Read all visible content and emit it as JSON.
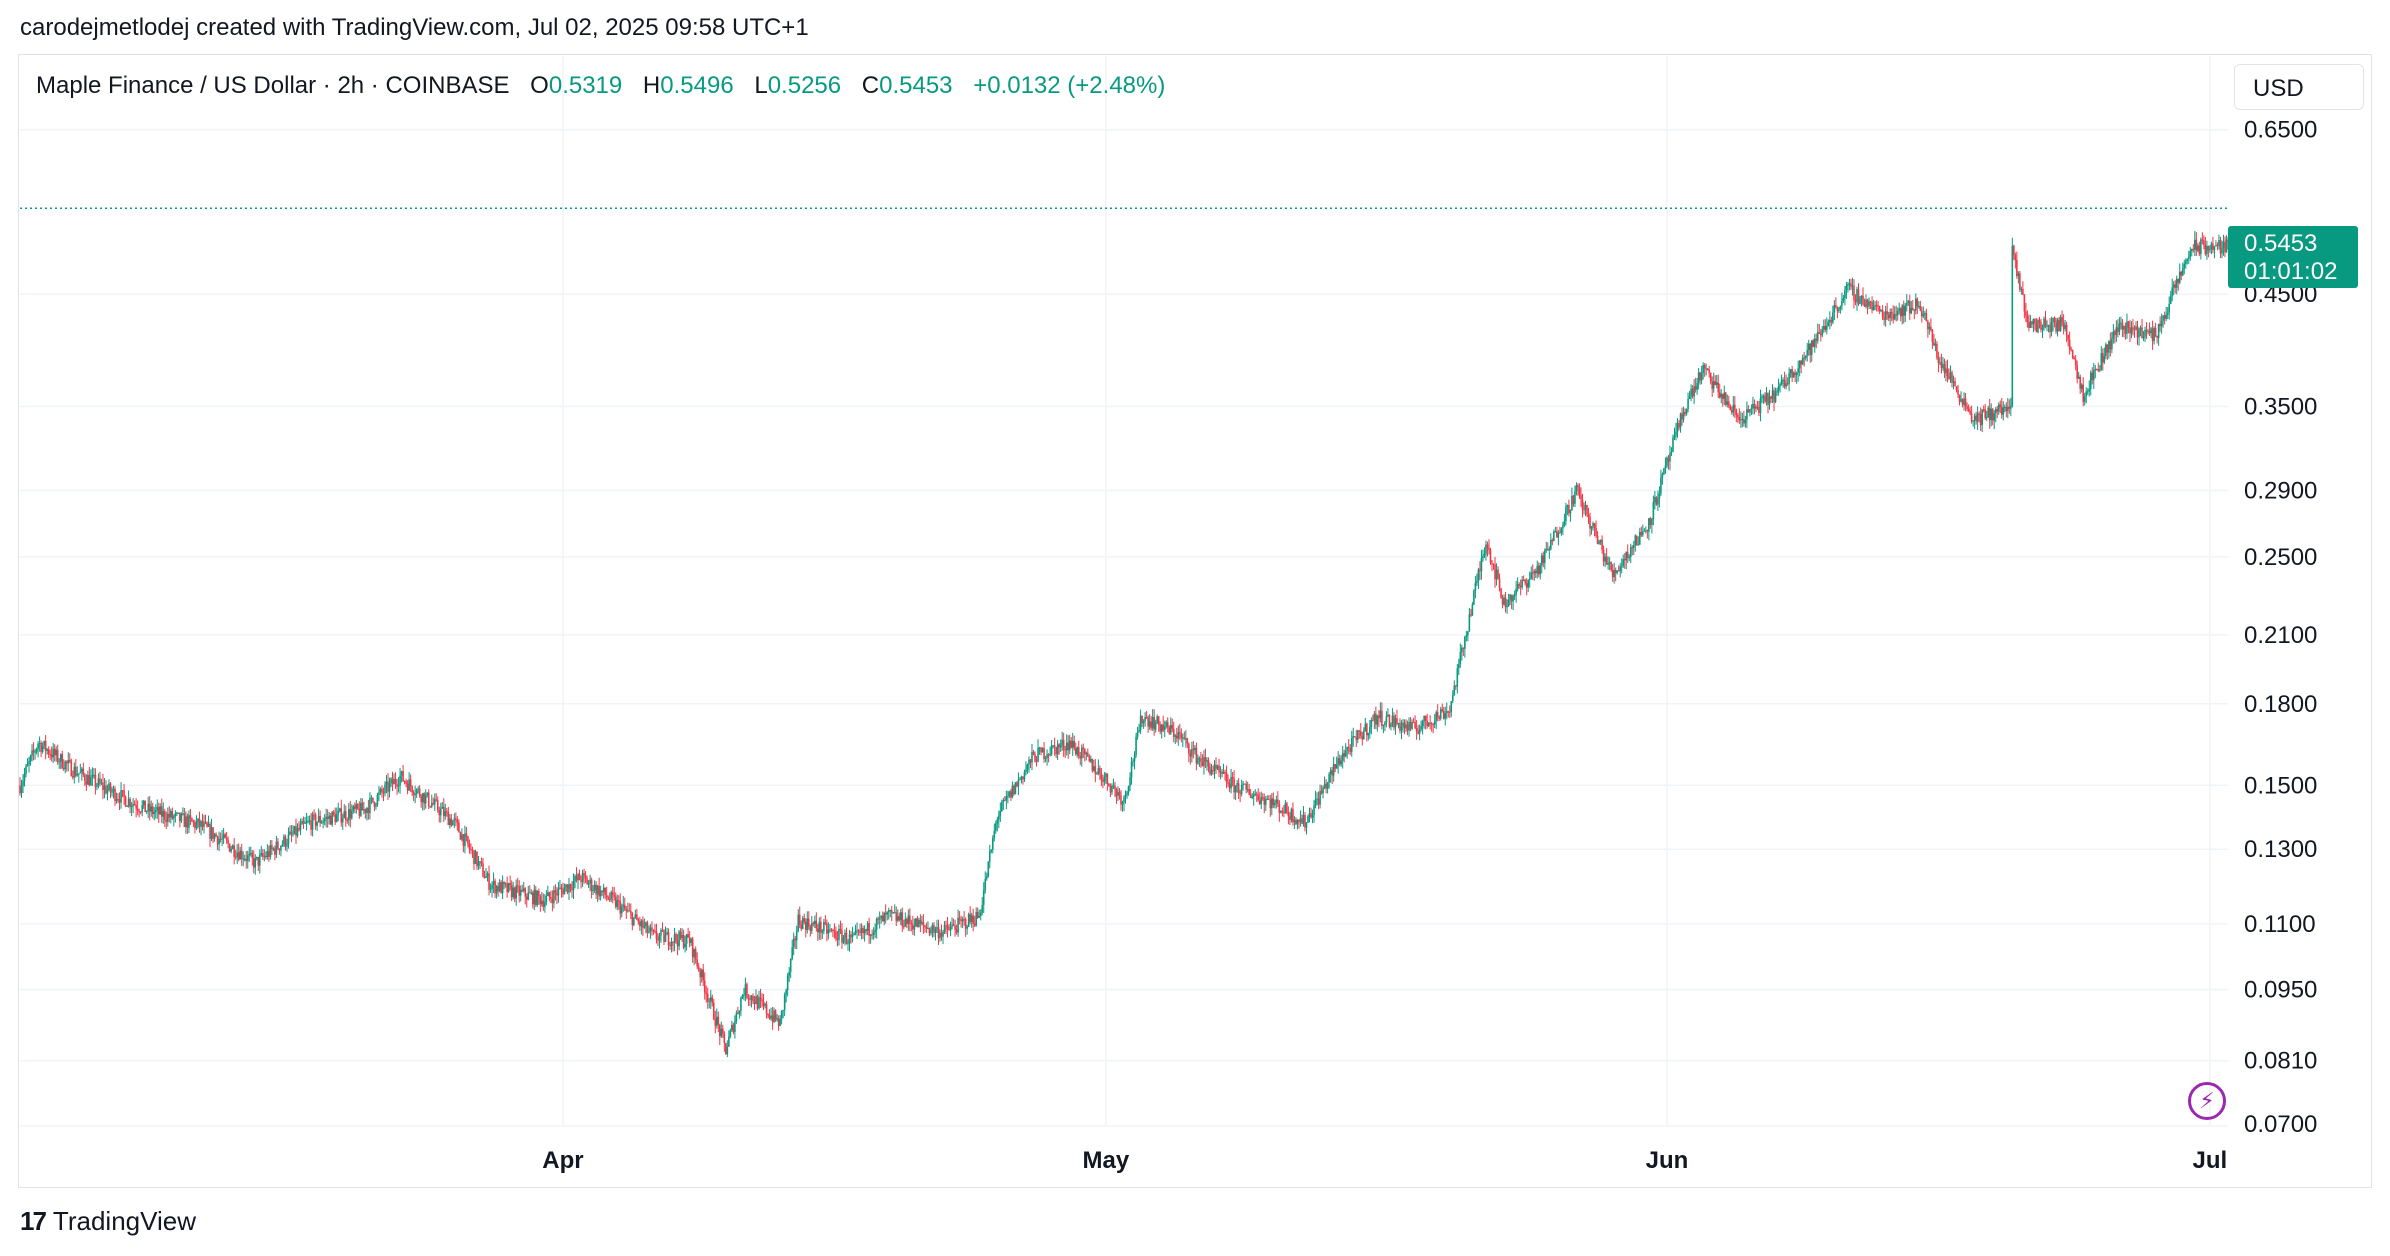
{
  "credit": "carodejmetlodej created with TradingView.com, Jul 02, 2025 09:58 UTC+1",
  "legend": {
    "symbol": "Maple Finance / US Dollar · 2h · COINBASE",
    "o_label": "O",
    "o_value": "0.5319",
    "h_label": "H",
    "h_value": "0.5496",
    "l_label": "L",
    "l_value": "0.5256",
    "c_label": "C",
    "c_value": "0.5453",
    "change": "+0.0132 (+2.48%)"
  },
  "currency": "USD",
  "price_tag": {
    "price": "0.5453",
    "countdown": "01:01:02"
  },
  "brand": {
    "mark": "17",
    "name": "TradingView"
  },
  "icons": {
    "alert": "lightning-bolt-icon"
  },
  "colors": {
    "up": "#089981",
    "down": "#f23645",
    "grid": "#f0f3fa",
    "text": "#131722"
  },
  "chart_data": {
    "type": "candlestick",
    "interval": "2h",
    "scale": "log",
    "x_range": [
      "2025-03-02",
      "2025-07-02"
    ],
    "ylim": [
      0.07,
      0.72
    ],
    "y_ticks": [
      "0.6500",
      "0.4500",
      "0.3500",
      "0.2900",
      "0.2500",
      "0.2100",
      "0.1800",
      "0.1500",
      "0.1300",
      "0.1100",
      "0.0950",
      "0.0810",
      "0.0700"
    ],
    "x_ticks": [
      {
        "date": "2025-04-01",
        "label": "Apr"
      },
      {
        "date": "2025-05-01",
        "label": "May"
      },
      {
        "date": "2025-06-01",
        "label": "Jun"
      },
      {
        "date": "2025-07-01",
        "label": "Jul"
      }
    ],
    "last_price": 0.5453,
    "path": [
      [
        "2025-03-02",
        0.15
      ],
      [
        "2025-03-03",
        0.165
      ],
      [
        "2025-03-05",
        0.155
      ],
      [
        "2025-03-07",
        0.148
      ],
      [
        "2025-03-09",
        0.142
      ],
      [
        "2025-03-12",
        0.137
      ],
      [
        "2025-03-15",
        0.126
      ],
      [
        "2025-03-18",
        0.138
      ],
      [
        "2025-03-21",
        0.142
      ],
      [
        "2025-03-23",
        0.153
      ],
      [
        "2025-03-26",
        0.138
      ],
      [
        "2025-03-28",
        0.12
      ],
      [
        "2025-03-31",
        0.116
      ],
      [
        "2025-04-02",
        0.122
      ],
      [
        "2025-04-04",
        0.115
      ],
      [
        "2025-04-06",
        0.107
      ],
      [
        "2025-04-08",
        0.106
      ],
      [
        "2025-04-10",
        0.083
      ],
      [
        "2025-04-11",
        0.095
      ],
      [
        "2025-04-13",
        0.088
      ],
      [
        "2025-04-14",
        0.111
      ],
      [
        "2025-04-17",
        0.106
      ],
      [
        "2025-04-19",
        0.112
      ],
      [
        "2025-04-22",
        0.108
      ],
      [
        "2025-04-24",
        0.112
      ],
      [
        "2025-04-25",
        0.14
      ],
      [
        "2025-04-27",
        0.16
      ],
      [
        "2025-04-29",
        0.165
      ],
      [
        "2025-05-01",
        0.152
      ],
      [
        "2025-05-02",
        0.145
      ],
      [
        "2025-05-03",
        0.175
      ],
      [
        "2025-05-05",
        0.168
      ],
      [
        "2025-05-06",
        0.16
      ],
      [
        "2025-05-08",
        0.15
      ],
      [
        "2025-05-10",
        0.145
      ],
      [
        "2025-05-12",
        0.138
      ],
      [
        "2025-05-14",
        0.16
      ],
      [
        "2025-05-16",
        0.175
      ],
      [
        "2025-05-18",
        0.17
      ],
      [
        "2025-05-20",
        0.178
      ],
      [
        "2025-05-22",
        0.26
      ],
      [
        "2025-05-23",
        0.225
      ],
      [
        "2025-05-25",
        0.245
      ],
      [
        "2025-05-27",
        0.29
      ],
      [
        "2025-05-29",
        0.24
      ],
      [
        "2025-05-31",
        0.27
      ],
      [
        "2025-06-02",
        0.35
      ],
      [
        "2025-06-03",
        0.38
      ],
      [
        "2025-06-05",
        0.34
      ],
      [
        "2025-06-07",
        0.36
      ],
      [
        "2025-06-09",
        0.4
      ],
      [
        "2025-06-11",
        0.455
      ],
      [
        "2025-06-13",
        0.43
      ],
      [
        "2025-06-15",
        0.44
      ],
      [
        "2025-06-16",
        0.39
      ],
      [
        "2025-06-18",
        0.34
      ],
      [
        "2025-06-20",
        0.35
      ],
      [
        "2025-06-21",
        0.42
      ],
      [
        "2025-06-23",
        0.42
      ],
      [
        "2025-06-24",
        0.36
      ],
      [
        "2025-06-26",
        0.42
      ],
      [
        "2025-06-28",
        0.41
      ],
      [
        "2025-06-30",
        0.5
      ],
      [
        "2025-06-20",
        0.5
      ]
    ]
  }
}
